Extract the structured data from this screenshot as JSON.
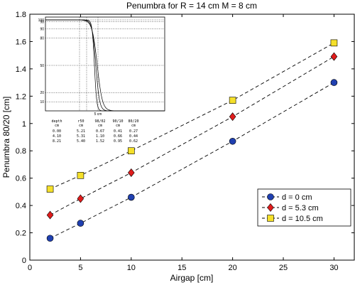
{
  "chart_data": {
    "type": "line",
    "title": "Penumbra for R = 14 cm M = 8 cm",
    "xlabel": "Airgap [cm]",
    "ylabel": "Penumbra 80/20 [cm]",
    "xlim": [
      0,
      32
    ],
    "ylim": [
      0,
      1.8
    ],
    "xticks": [
      0,
      5,
      10,
      15,
      20,
      25,
      30
    ],
    "yticks": [
      0,
      0.2,
      0.4,
      0.6,
      0.8,
      1,
      1.2,
      1.4,
      1.6,
      1.8
    ],
    "ytick_labels": [
      "0",
      "0.2",
      "0.4",
      "0.6",
      "0.8",
      "1",
      "1.2",
      "1.4",
      "1.6",
      "1.8"
    ],
    "x": [
      2,
      5,
      10,
      20,
      30
    ],
    "series": [
      {
        "name": "d = 0 cm",
        "marker": "circle",
        "color": "#2040b0",
        "values": [
          0.16,
          0.27,
          0.46,
          0.87,
          1.3
        ]
      },
      {
        "name": "d = 5.3 cm",
        "marker": "diamond",
        "color": "#e01c1c",
        "values": [
          0.33,
          0.45,
          0.64,
          1.05,
          1.49
        ]
      },
      {
        "name": "d = 10.5 cm",
        "marker": "square",
        "color": "#f5e02a",
        "values": [
          0.52,
          0.62,
          0.8,
          1.17,
          1.59
        ]
      }
    ],
    "grid": false,
    "legend_position": "bottom-right",
    "inset": {
      "yticks": [
        10,
        20,
        50,
        80,
        90,
        98,
        100
      ],
      "xlabel": "5 cm",
      "table": {
        "headers": [
          [
            "depth",
            "cm"
          ],
          [
            "r50",
            "cm"
          ],
          [
            "98/02",
            "cm"
          ],
          [
            "90/10",
            "cm"
          ],
          [
            "80/20",
            "cm"
          ]
        ],
        "rows": [
          [
            "0.00",
            "5.21",
            "0.67",
            "0.41",
            "0.27"
          ],
          [
            "4.10",
            "5.31",
            "1.10",
            "0.66",
            "0.44"
          ],
          [
            "8.21",
            "5.40",
            "1.52",
            "0.95",
            "0.62"
          ]
        ]
      }
    }
  }
}
